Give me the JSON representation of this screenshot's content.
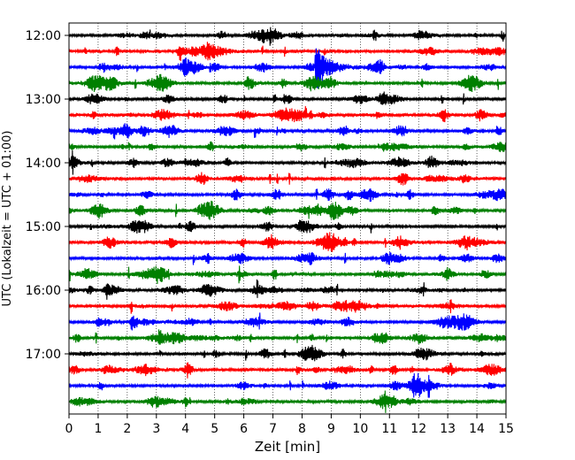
{
  "chart_data": {
    "type": "line",
    "title": "",
    "xlabel": "Zeit  [min]",
    "ylabel": "UTC (Lokalzeit = UTC + 01:00)",
    "xlim": [
      0,
      15
    ],
    "x_ticks": [
      "0",
      "1",
      "2",
      "3",
      "4",
      "5",
      "6",
      "7",
      "8",
      "9",
      "10",
      "11",
      "12",
      "13",
      "14",
      "15"
    ],
    "y_ticks": [
      "12:00",
      "13:00",
      "14:00",
      "15:00",
      "16:00",
      "17:00"
    ],
    "grid": {
      "x": true,
      "style": "dotted"
    },
    "colors": [
      "#000000",
      "#ff0000",
      "#0000ff",
      "#008000"
    ],
    "traces": [
      "12:00",
      "12:15",
      "12:30",
      "12:45",
      "13:00",
      "13:15",
      "13:30",
      "13:45",
      "14:00",
      "14:15",
      "14:30",
      "14:45",
      "15:00",
      "15:15",
      "15:30",
      "15:45",
      "16:00",
      "16:15",
      "16:30",
      "16:45",
      "17:00",
      "17:15",
      "17:30",
      "17:45"
    ],
    "event": {
      "trace": "12:30",
      "x_start": 8.45,
      "x_end": 10.5,
      "peak_amplitude": 1.0
    }
  }
}
